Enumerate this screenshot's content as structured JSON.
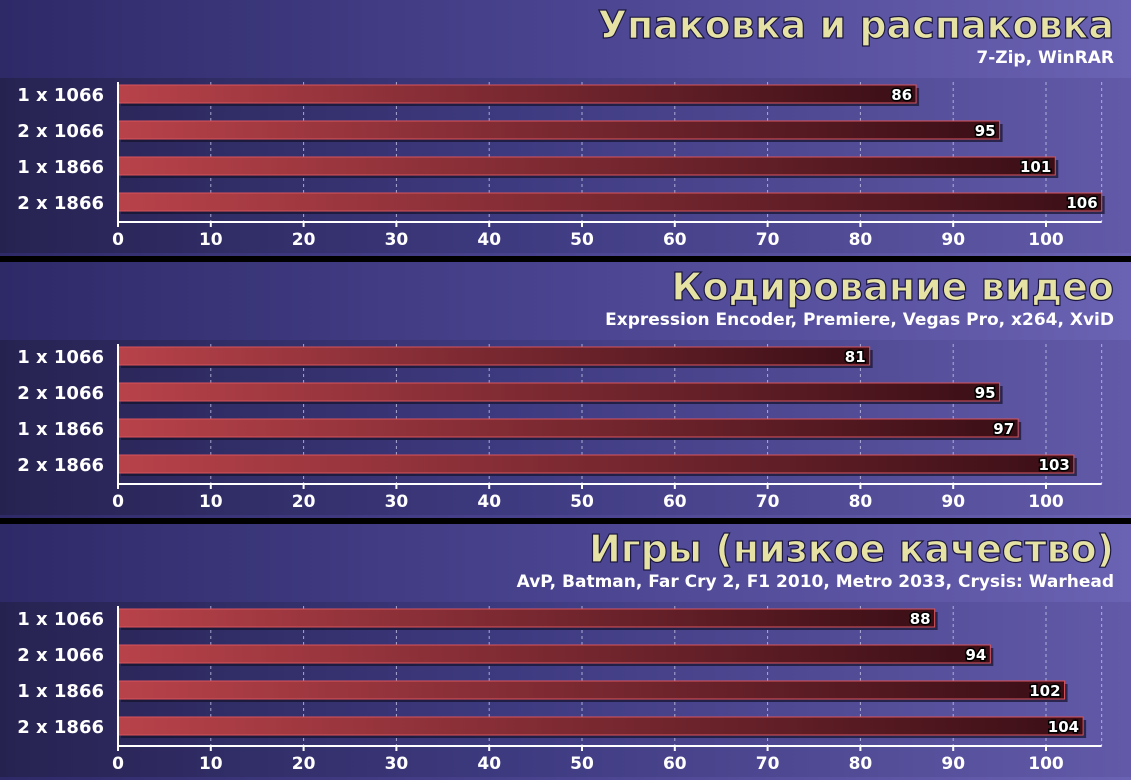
{
  "chart_data": [
    {
      "type": "bar",
      "title": "Упаковка и распаковка",
      "subtitle": "7-Zip, WinRAR",
      "categories": [
        "1 x 1066",
        "2 x 1066",
        "1 x 1866",
        "2 x 1866"
      ],
      "values": [
        86,
        95,
        101,
        106
      ],
      "xlim": [
        0,
        106
      ],
      "ticks": [
        0,
        10,
        20,
        30,
        40,
        50,
        60,
        70,
        80,
        90,
        100
      ],
      "grid": true,
      "bar_color": "#b8424a",
      "background_color": "#4a4490"
    },
    {
      "type": "bar",
      "title": "Кодирование видео",
      "subtitle": "Expression Encoder, Premiere, Vegas Pro, x264, XviD",
      "categories": [
        "1 x 1066",
        "2 x 1066",
        "1 x 1866",
        "2 x 1866"
      ],
      "values": [
        81,
        95,
        97,
        103
      ],
      "xlim": [
        0,
        106
      ],
      "ticks": [
        0,
        10,
        20,
        30,
        40,
        50,
        60,
        70,
        80,
        90,
        100
      ],
      "grid": true,
      "bar_color": "#b8424a",
      "background_color": "#4a4490"
    },
    {
      "type": "bar",
      "title": "Игры (низкое качество)",
      "subtitle": "AvP, Batman, Far Cry 2, F1 2010, Metro 2033, Crysis: Warhead",
      "categories": [
        "1 x 1066",
        "2 x 1066",
        "1 x 1866",
        "2 x 1866"
      ],
      "values": [
        88,
        94,
        102,
        104
      ],
      "xlim": [
        0,
        106
      ],
      "ticks": [
        0,
        10,
        20,
        30,
        40,
        50,
        60,
        70,
        80,
        90,
        100
      ],
      "grid": true,
      "bar_color": "#b8424a",
      "background_color": "#4a4490"
    }
  ]
}
